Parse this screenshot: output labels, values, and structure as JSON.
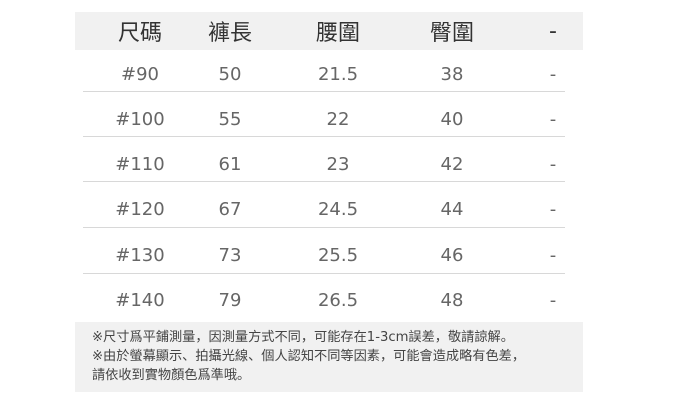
{
  "table": {
    "headers": [
      "尺碼",
      "褲長",
      "腰圍",
      "臀圍",
      "-"
    ],
    "rows": [
      [
        "#90",
        "50",
        "21.5",
        "38",
        "-"
      ],
      [
        "#100",
        "55",
        "22",
        "40",
        "-"
      ],
      [
        "#110",
        "61",
        "23",
        "42",
        "-"
      ],
      [
        "#120",
        "67",
        "24.5",
        "44",
        "-"
      ],
      [
        "#130",
        "73",
        "25.5",
        "46",
        "-"
      ],
      [
        "#140",
        "79",
        "26.5",
        "48",
        "-"
      ]
    ]
  },
  "notes": [
    "※尺寸爲平鋪測量，因測量方式不同，可能存在1-3cm誤差，敬請諒解。",
    "※由於螢幕顯示、拍攝光線、個人認知不同等因素，可能會造成略有色差，",
    "請依收到實物顏色爲準哦。"
  ]
}
